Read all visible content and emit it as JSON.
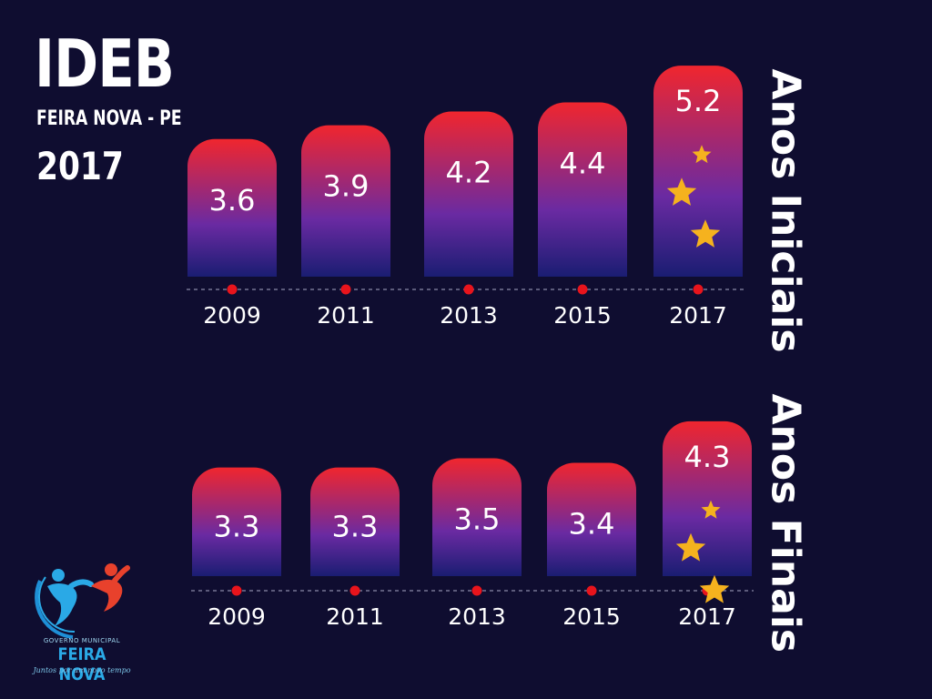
{
  "header": {
    "title": "IDEB",
    "subtitle": "FEIRA NOVA - PE",
    "year": "2017"
  },
  "colors": {
    "background": "#0f0d30",
    "bar_top": "#f0262e",
    "bar_mid": "#6a2aa2",
    "bar_bottom": "#1a1d72",
    "dot": "#e8141c",
    "star": "#f5b21e",
    "text": "#ffffff"
  },
  "chart_data": [
    {
      "type": "bar",
      "title": "Anos Iniciais",
      "categories": [
        "2009",
        "2011",
        "2013",
        "2015",
        "2017"
      ],
      "values": [
        3.6,
        3.9,
        4.2,
        4.4,
        5.2
      ],
      "value_labels": [
        "3.6",
        "3.9",
        "4.2",
        "4.4",
        "5.2"
      ],
      "highlight_index": 4
    },
    {
      "type": "bar",
      "title": "Anos Finais",
      "categories": [
        "2009",
        "2011",
        "2013",
        "2015",
        "2017"
      ],
      "values": [
        3.3,
        3.3,
        3.5,
        3.4,
        4.3
      ],
      "value_labels": [
        "3.3",
        "3.3",
        "3.5",
        "3.4",
        "4.3"
      ],
      "highlight_index": 4
    }
  ],
  "logo": {
    "government": "GOVERNO MUNICIPAL",
    "name": "FEIRA NOVA",
    "slogan": "Juntos por um novo tempo"
  }
}
